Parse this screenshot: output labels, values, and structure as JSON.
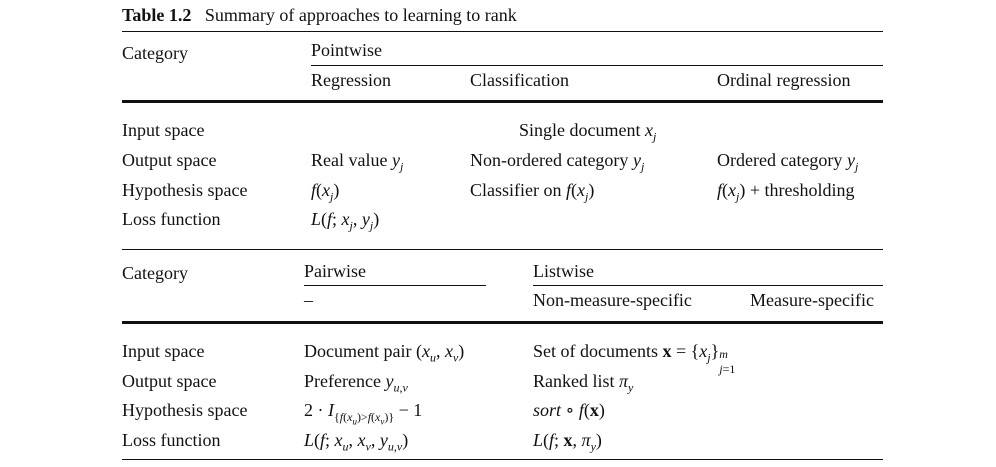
{
  "caption": {
    "label": "Table 1.2",
    "title": "Summary of approaches to learning to rank"
  },
  "pointwise_table": {
    "category_label": "Category",
    "group_header": "Pointwise",
    "columns": [
      "Regression",
      "Classification",
      "Ordinal regression"
    ],
    "rows": [
      {
        "label": "Input space",
        "spanning": "Single document x_j"
      },
      {
        "label": "Output space",
        "cells": [
          "Real value y_j",
          "Non-ordered category y_j",
          "Ordered category y_j"
        ]
      },
      {
        "label": "Hypothesis space",
        "cells": [
          "f(x_j)",
          "Classifier on f(x_j)",
          "f(x_j) + thresholding"
        ]
      },
      {
        "label": "Loss function",
        "cells": [
          "L(f; x_j, y_j)",
          "",
          ""
        ]
      }
    ]
  },
  "pair_list_table": {
    "category_label": "Category",
    "pairwise_header": "Pairwise",
    "pairwise_sub": "–",
    "listwise_header": "Listwise",
    "listwise_subcolumns": [
      "Non-measure-specific",
      "Measure-specific"
    ],
    "rows": [
      {
        "label": "Input space",
        "pairwise": "Document pair (x_u, x_v)",
        "listwise": "Set of documents x = {x_j}_{j=1}^m"
      },
      {
        "label": "Output space",
        "pairwise": "Preference y_{u,v}",
        "listwise": "Ranked list π_y"
      },
      {
        "label": "Hypothesis space",
        "pairwise": "2 · I_{f(x_u)>f(x_v)} − 1",
        "listwise": "sort ∘ f(x)"
      },
      {
        "label": "Loss function",
        "pairwise": "L(f; x_u, x_v, y_{u,v})",
        "listwise": "L(f; x, π_y)"
      }
    ]
  }
}
